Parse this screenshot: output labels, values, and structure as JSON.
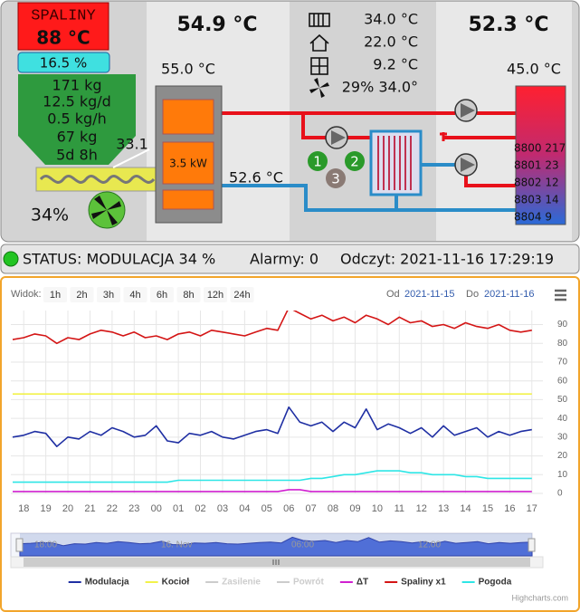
{
  "panel": {
    "flue_label": "SPALINY",
    "flue_temp": "88 °C",
    "fuel_level": "16.5 %",
    "fuel_stats": [
      "171 kg",
      "12.5 kg/d",
      "0.5 kg/h",
      "67 kg",
      "5d 8h"
    ],
    "feeder_temp": "33.1",
    "fan": "34%",
    "boiler_temp": "54.9 °C",
    "boiler_set": "55.0 °C",
    "power": "3.5 kW",
    "return_temp": "52.6 °C",
    "heating": [
      "34.0 °C",
      "22.0 °C",
      "9.2 °C",
      "29% 34.0°"
    ],
    "pumps": [
      "1",
      "2",
      "3"
    ],
    "dhw_temp": "52.3 °C",
    "dhw_set": "45.0 °C",
    "counters": [
      "8800 217",
      "8801 23",
      "8802 12",
      "8803 14",
      "8804 9"
    ]
  },
  "status": {
    "state": "STATUS: MODULACJA 34 %",
    "alarms": "Alarmy: 0",
    "reading": "Odczyt: 2021-11-16 17:29:19"
  },
  "chart_data": {
    "type": "line",
    "range_selector": {
      "label": "Widok:",
      "buttons": [
        "1h",
        "2h",
        "3h",
        "4h",
        "6h",
        "8h",
        "12h",
        "24h"
      ],
      "from_label": "Od",
      "from": "2021-11-15",
      "to_label": "Do",
      "to": "2021-11-16"
    },
    "categories": [
      null,
      "18",
      null,
      "19",
      null,
      "20",
      null,
      "21",
      null,
      "22",
      null,
      "23",
      null,
      "00",
      null,
      "01",
      null,
      "02",
      null,
      "03",
      null,
      "04",
      null,
      "05",
      null,
      "06",
      null,
      "07",
      null,
      "08",
      null,
      "09",
      null,
      "10",
      null,
      "11",
      null,
      "12",
      null,
      "13",
      null,
      "14",
      null,
      "15",
      null,
      "16",
      null,
      "17"
    ],
    "series": [
      {
        "name": "Modulacja",
        "color": "#1f2fa3",
        "values": [
          30,
          31,
          33,
          32,
          25,
          30,
          29,
          33,
          31,
          35,
          33,
          30,
          31,
          36,
          28,
          27,
          32,
          31,
          33,
          30,
          29,
          31,
          33,
          34,
          32,
          46,
          38,
          36,
          38,
          33,
          38,
          35,
          45,
          34,
          37,
          35,
          32,
          35,
          30,
          36,
          31,
          33,
          35,
          30,
          33,
          31,
          33,
          34
        ]
      },
      {
        "name": "Kocioł",
        "color": "#f2f24a",
        "values": [
          53,
          53,
          53,
          53,
          53,
          53,
          53,
          53,
          53,
          53,
          53,
          53,
          53,
          53,
          53,
          53,
          53,
          53,
          53,
          53,
          53,
          53,
          53,
          53,
          53,
          53,
          53,
          53,
          53,
          53,
          53,
          53,
          53,
          53,
          53,
          53,
          53,
          53,
          53,
          53,
          53,
          53,
          53,
          53,
          53,
          53,
          53,
          53
        ]
      },
      {
        "name": "Zasilenie",
        "color": "#cccccc",
        "visible": false
      },
      {
        "name": "Powrót",
        "color": "#cccccc",
        "visible": false
      },
      {
        "name": "ΔT",
        "color": "#d020d0",
        "values": [
          1,
          1,
          1,
          1,
          1,
          1,
          1,
          1,
          1,
          1,
          1,
          1,
          1,
          1,
          1,
          1,
          1,
          1,
          1,
          1,
          1,
          1,
          1,
          1,
          1,
          2,
          2,
          1,
          1,
          1,
          1,
          1,
          1,
          1,
          1,
          1,
          1,
          1,
          1,
          1,
          1,
          1,
          1,
          1,
          1,
          1,
          1,
          1
        ]
      },
      {
        "name": "Spaliny x1",
        "color": "#d41515",
        "values": [
          82,
          83,
          85,
          84,
          80,
          83,
          82,
          85,
          87,
          86,
          84,
          86,
          83,
          84,
          82,
          85,
          86,
          84,
          87,
          86,
          85,
          84,
          86,
          88,
          87,
          99,
          96,
          93,
          95,
          92,
          94,
          91,
          95,
          93,
          90,
          94,
          91,
          92,
          89,
          90,
          88,
          91,
          89,
          88,
          90,
          87,
          86,
          87
        ]
      },
      {
        "name": "Pogoda",
        "color": "#2ee6e6",
        "values": [
          6,
          6,
          6,
          6,
          6,
          6,
          6,
          6,
          6,
          6,
          6,
          6,
          6,
          6,
          6,
          7,
          7,
          7,
          7,
          7,
          7,
          7,
          7,
          7,
          7,
          7,
          7,
          8,
          8,
          9,
          10,
          10,
          11,
          12,
          12,
          12,
          11,
          11,
          10,
          10,
          10,
          9,
          9,
          8,
          8,
          8,
          8,
          8
        ]
      }
    ],
    "ylim": [
      0,
      97.5
    ],
    "yticks": [
      0,
      10,
      20,
      30,
      40,
      50,
      60,
      70,
      80,
      90
    ],
    "grid": true,
    "navigator": {
      "labels": [
        "18:00",
        "16. Nov",
        "06:00",
        "12:00"
      ]
    },
    "credits": "Highcharts.com"
  }
}
